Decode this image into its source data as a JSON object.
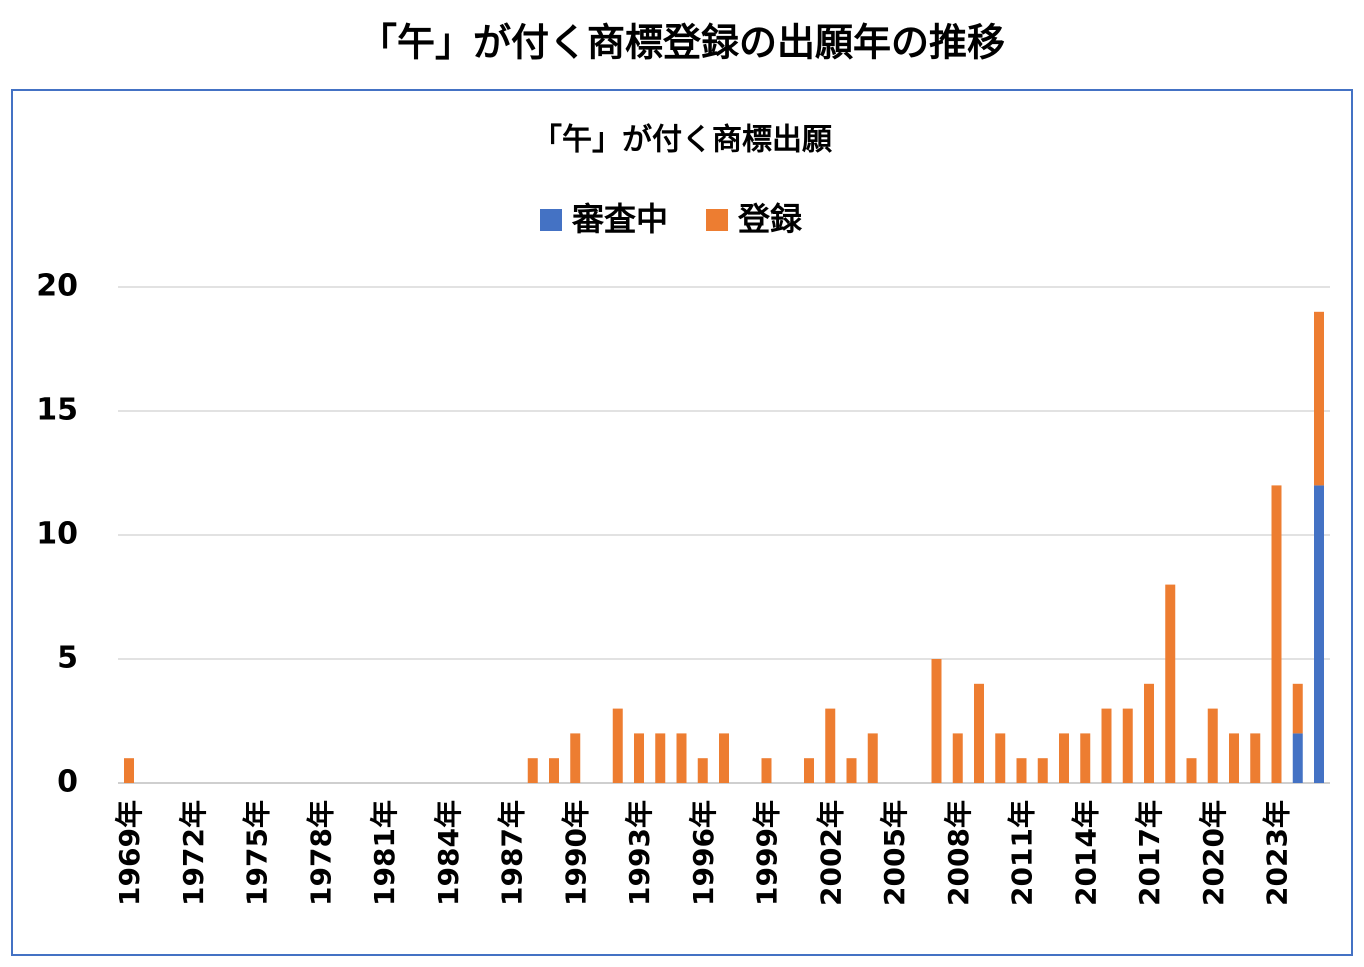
{
  "chart_data": {
    "type": "bar",
    "stacked": true,
    "title": "「午」が付く商標登録の出願年の推移",
    "subtitle": "「午」が付く商標出願",
    "categories": [
      "1969年",
      null,
      null,
      "1972年",
      null,
      null,
      "1975年",
      null,
      null,
      "1978年",
      null,
      null,
      "1981年",
      null,
      null,
      "1984年",
      null,
      null,
      "1987年",
      null,
      null,
      "1990年",
      null,
      null,
      "1993年",
      null,
      null,
      "1996年",
      null,
      null,
      "1999年",
      null,
      null,
      "2002年",
      null,
      null,
      "2005年",
      null,
      null,
      "2008年",
      null,
      null,
      "2011年",
      null,
      null,
      "2014年",
      null,
      null,
      "2017年",
      null,
      null,
      "2020年",
      null,
      null,
      "2023年",
      null,
      null
    ],
    "series": [
      {
        "name": "審査中",
        "color": "#4472c4",
        "values": [
          0,
          0,
          0,
          0,
          0,
          0,
          0,
          0,
          0,
          0,
          0,
          0,
          0,
          0,
          0,
          0,
          0,
          0,
          0,
          0,
          0,
          0,
          0,
          0,
          0,
          0,
          0,
          0,
          0,
          0,
          0,
          0,
          0,
          0,
          0,
          0,
          0,
          0,
          0,
          0,
          0,
          0,
          0,
          0,
          0,
          0,
          0,
          0,
          0,
          0,
          0,
          0,
          0,
          0,
          0,
          2,
          12
        ]
      },
      {
        "name": "登録",
        "color": "#ed7d31",
        "values": [
          1,
          0,
          0,
          0,
          0,
          0,
          0,
          0,
          0,
          0,
          0,
          0,
          0,
          0,
          0,
          0,
          0,
          0,
          0,
          1,
          1,
          2,
          0,
          3,
          2,
          2,
          2,
          1,
          2,
          0,
          1,
          0,
          1,
          3,
          1,
          2,
          0,
          0,
          5,
          2,
          4,
          2,
          1,
          1,
          2,
          2,
          3,
          3,
          4,
          8,
          1,
          3,
          2,
          2,
          12,
          2,
          7
        ]
      }
    ],
    "ylim": [
      0,
      20
    ],
    "yticks": [
      0,
      5,
      10,
      15,
      20
    ],
    "grid": true,
    "legend": "top"
  }
}
